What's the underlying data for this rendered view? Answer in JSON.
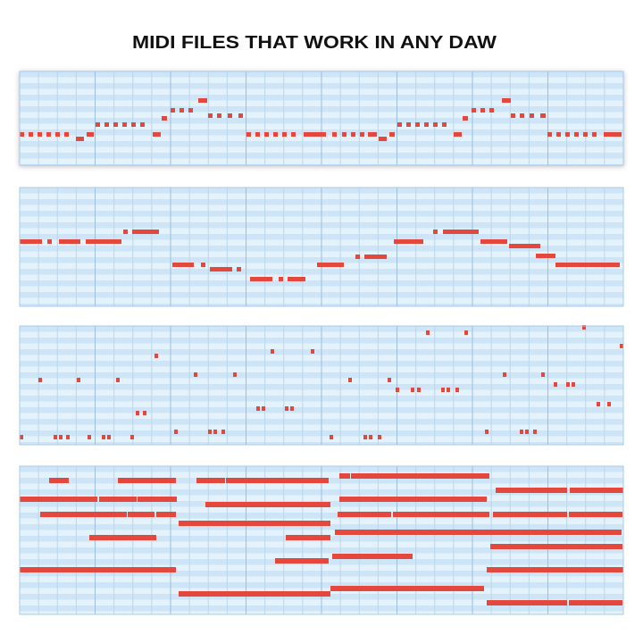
{
  "header": {
    "title": "MIDI FILES THAT WORK IN ANY DAW"
  }
}
